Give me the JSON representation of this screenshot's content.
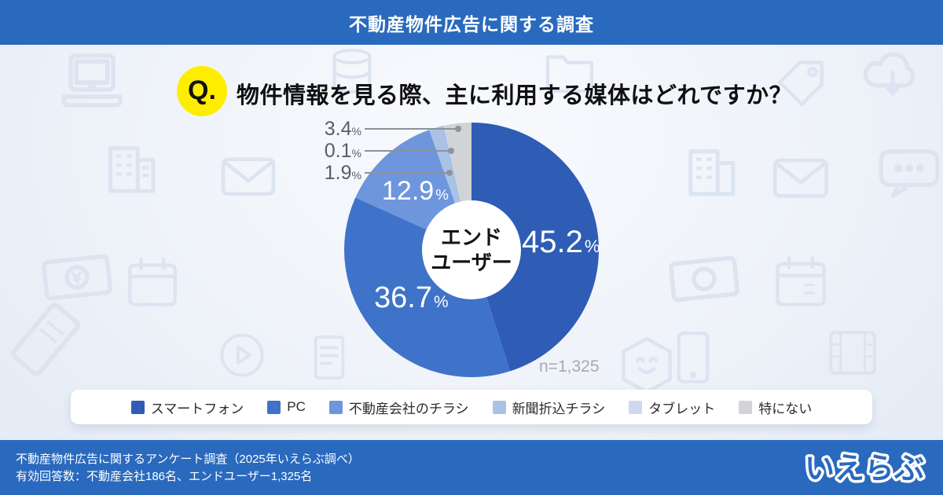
{
  "header": {
    "title": "不動産物件広告に関する調査"
  },
  "question": {
    "badge_label": "Q.",
    "text": "物件情報を見る際、主に利用する媒体はどれですか？",
    "badge_color": "#ffed00"
  },
  "chart_data": {
    "type": "pie",
    "donut": true,
    "title": "物件情報を見る際、主に利用する媒体はどれですか？",
    "categories": [
      "スマートフォン",
      "PC",
      "不動産会社のチラシ",
      "新聞折込チラシ",
      "タブレット",
      "特にない"
    ],
    "values": [
      45.2,
      36.7,
      12.9,
      1.9,
      0.1,
      3.4
    ],
    "unit": "%",
    "colors": [
      "#2f5cb5",
      "#3e73c9",
      "#6e96dc",
      "#abc2e7",
      "#ccd9ee",
      "#d2d3d6"
    ],
    "start_angle_deg": 0,
    "direction": "clockwise",
    "center_label": "エンドユーザー",
    "center_label_lines": [
      "エンド",
      "ユーザー"
    ],
    "sample_size_label": "n=1,325",
    "legend_position": "bottom"
  },
  "footer": {
    "line1": "不動産物件広告に関するアンケート調査（2025年いえらぶ調べ）",
    "line2": "有効回答数：不動産会社186名、エンドユーザー1,325名",
    "logo": "いえらぶ"
  },
  "colors": {
    "bar_blue": "#2a6abe",
    "background": "#eef2f9",
    "watermark": "#dce4f1",
    "small_label_gray": "#5a5f66",
    "n_label_gray": "#a6aab1"
  },
  "watermark_icons": [
    "laptop-icon",
    "building-icon",
    "envelope-icon",
    "database-icon",
    "folder-icon",
    "sale-tag-icon",
    "cloud-download-icon",
    "speech-bubble-icon",
    "banknote-icon",
    "calendar-icon",
    "ticket-icon",
    "play-icon",
    "document-icon",
    "tablet-icon",
    "film-icon",
    "mascot-icon"
  ]
}
